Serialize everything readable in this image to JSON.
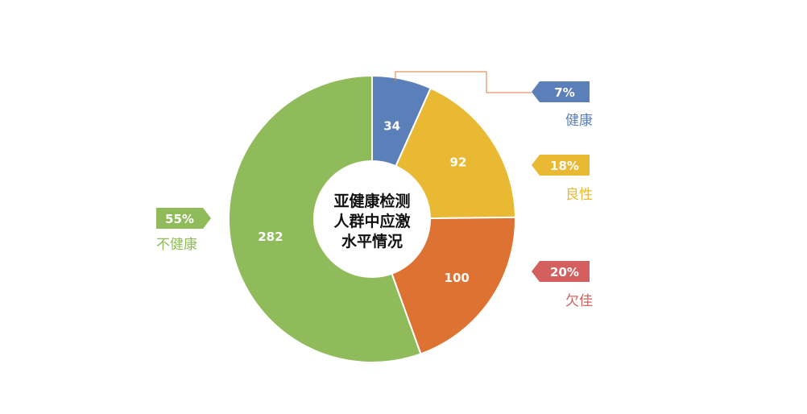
{
  "chart_data": {
    "type": "pie",
    "title": "亚健康检测人群中应激水平情况",
    "title_lines": [
      "亚健康检测",
      "人群中应激",
      "水平情况"
    ],
    "slices": [
      {
        "name": "健康",
        "value": 34,
        "percent": "7%",
        "color": "#5b7fb8"
      },
      {
        "name": "良性",
        "value": 92,
        "percent": "18%",
        "color": "#e9b933"
      },
      {
        "name": "欠佳",
        "value": 100,
        "percent": "20%",
        "color": "#de7233"
      },
      {
        "name": "不健康",
        "value": 282,
        "percent": "55%",
        "color": "#8fbb5a"
      }
    ],
    "tag_colors": {
      "健康": "#5b7fb8",
      "良性": "#e9b933",
      "欠佳": "#d45f5f",
      "不健康": "#8fbb5a"
    },
    "leader_color": "#e07a3a"
  }
}
